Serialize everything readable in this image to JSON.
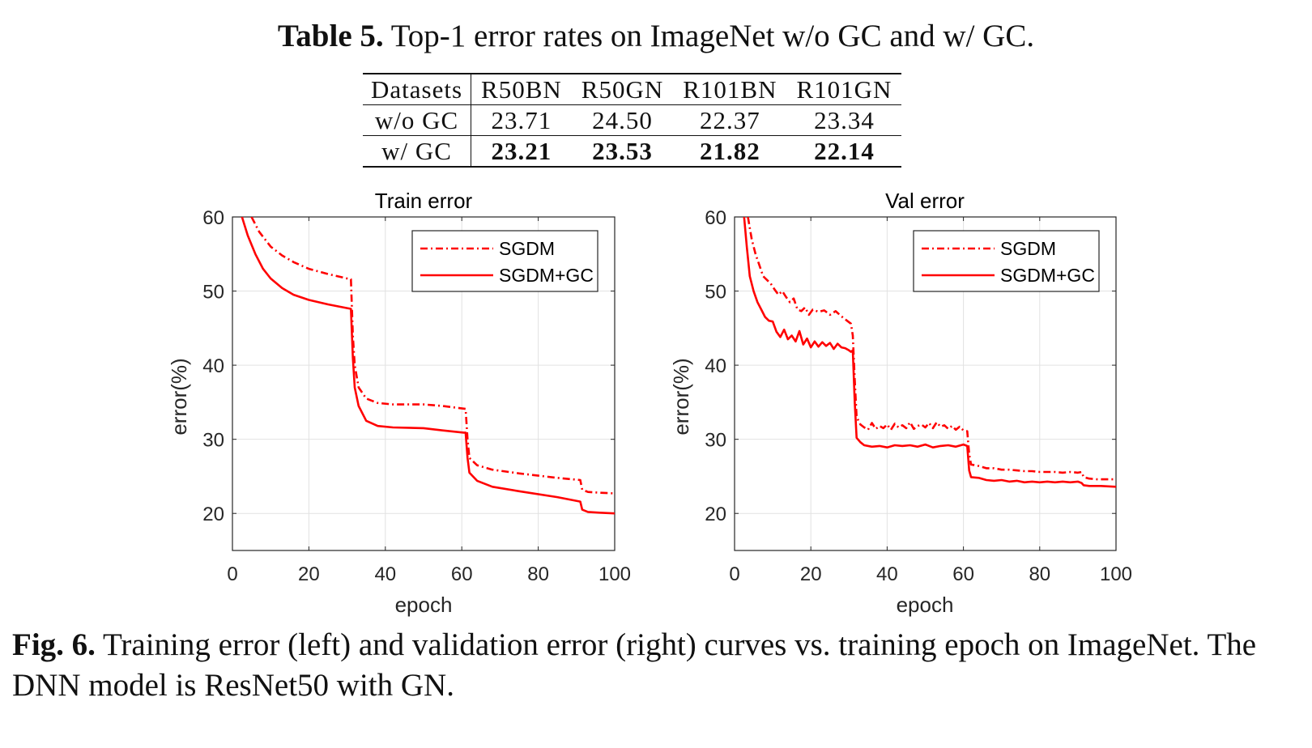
{
  "table": {
    "caption_label": "Table 5.",
    "caption_text": "Top-1 error rates on ImageNet w/o GC and w/ GC.",
    "header": [
      "Datasets",
      "R50BN",
      "R50GN",
      "R101BN",
      "R101GN"
    ],
    "rows": [
      {
        "label": "w/o GC",
        "values": [
          "23.71",
          "24.50",
          "22.37",
          "23.34"
        ]
      },
      {
        "label": "w/ GC",
        "values": [
          "23.21",
          "23.53",
          "21.82",
          "22.14"
        ]
      }
    ]
  },
  "figure": {
    "caption_label": "Fig. 6.",
    "caption_text": "Training error (left) and validation error (right) curves vs. training epoch on ImageNet. The DNN model is ResNet50 with GN."
  },
  "chart_data": [
    {
      "type": "line",
      "title": "Train error",
      "xlabel": "epoch",
      "ylabel": "error(%)",
      "xlim": [
        0,
        100
      ],
      "ylim": [
        15,
        60
      ],
      "xticks": [
        "0",
        "20",
        "40",
        "60",
        "80",
        "100"
      ],
      "yticks": [
        "20",
        "30",
        "40",
        "50",
        "60"
      ],
      "grid": true,
      "legend_position": "top-right",
      "color": "#ff0000",
      "series": [
        {
          "name": "SGDM",
          "style": "dashdot",
          "x": [
            5,
            7,
            10,
            13,
            16,
            20,
            25,
            30,
            31,
            31.5,
            32,
            33,
            35,
            38,
            42,
            50,
            55,
            61,
            61.5,
            62,
            64,
            68,
            75,
            85,
            91,
            91.5,
            93,
            96,
            100
          ],
          "y": [
            60,
            58,
            56,
            54.8,
            53.9,
            53,
            52.3,
            51.7,
            51.6,
            44,
            40,
            37,
            35.5,
            34.9,
            34.7,
            34.7,
            34.5,
            34.1,
            30,
            27.5,
            26.5,
            25.9,
            25.4,
            24.8,
            24.5,
            23.2,
            22.9,
            22.8,
            22.7
          ]
        },
        {
          "name": "SGDM+GC",
          "style": "solid",
          "x": [
            2.5,
            4,
            6,
            8,
            10,
            13,
            16,
            20,
            25,
            30,
            31,
            31.5,
            32,
            33,
            35,
            38,
            42,
            50,
            55,
            60.5,
            61,
            61.5,
            62,
            64,
            68,
            75,
            85,
            91,
            91.5,
            93,
            96,
            100
          ],
          "y": [
            60,
            57.5,
            55,
            53,
            51.7,
            50.4,
            49.5,
            48.8,
            48.2,
            47.7,
            47.6,
            41,
            37,
            34.5,
            32.5,
            31.8,
            31.6,
            31.5,
            31.2,
            30.9,
            30.9,
            27.5,
            25.5,
            24.4,
            23.6,
            23,
            22.2,
            21.6,
            20.5,
            20.2,
            20.1,
            20
          ]
        }
      ]
    },
    {
      "type": "line",
      "title": "Val error",
      "xlabel": "epoch",
      "ylabel": "error(%)",
      "xlim": [
        0,
        100
      ],
      "ylim": [
        15,
        60
      ],
      "xticks": [
        "0",
        "20",
        "40",
        "60",
        "80",
        "100"
      ],
      "yticks": [
        "20",
        "30",
        "40",
        "50",
        "60"
      ],
      "grid": true,
      "legend_position": "top-right",
      "color": "#ff0000",
      "series": [
        {
          "name": "SGDM",
          "style": "dashdot",
          "x": [
            3.5,
            4.5,
            5.5,
            6.5,
            7.5,
            8.5,
            9.5,
            10.5,
            11.5,
            12.5,
            13.5,
            14.5,
            15.5,
            16.5,
            17.5,
            18.5,
            19.5,
            20.5,
            22,
            23.5,
            25,
            26.5,
            28,
            29.5,
            30.5,
            31,
            31.5,
            32,
            33,
            34,
            35,
            36,
            37,
            38,
            39,
            40,
            41,
            42,
            43,
            44,
            45,
            46,
            47,
            48,
            49,
            50,
            51,
            52,
            53,
            54,
            55,
            56,
            57,
            58,
            59,
            60,
            61,
            61.5,
            62,
            64,
            66,
            68,
            70,
            72,
            74,
            76,
            78,
            80,
            82,
            84,
            86,
            88,
            90,
            91,
            91.5,
            93,
            95,
            97,
            100
          ],
          "y": [
            60,
            57,
            55,
            53.5,
            52,
            51.5,
            51,
            50.2,
            49.5,
            50,
            49.2,
            48.5,
            49,
            47.5,
            47.3,
            47.8,
            46.8,
            47.5,
            47.2,
            47.4,
            46.8,
            47.3,
            46.6,
            46,
            45.6,
            44,
            38,
            33,
            32,
            31.6,
            31.3,
            32.2,
            31.4,
            31.8,
            31.5,
            32,
            31.3,
            32.1,
            31.6,
            31.9,
            31.5,
            32.3,
            31.4,
            31.8,
            32,
            31.6,
            32.2,
            31.5,
            32.3,
            31.7,
            31.9,
            31.4,
            31.8,
            31.3,
            31.7,
            31.2,
            31.1,
            28,
            26.6,
            26.4,
            26.1,
            26.1,
            25.9,
            25.9,
            25.8,
            25.7,
            25.7,
            25.6,
            25.6,
            25.6,
            25.5,
            25.6,
            25.5,
            25.6,
            24.9,
            24.7,
            24.6,
            24.6,
            24.6
          ]
        },
        {
          "name": "SGDM+GC",
          "style": "solid",
          "x": [
            2.5,
            3.2,
            4,
            5,
            6,
            7,
            8,
            9,
            10,
            11,
            12,
            13,
            14,
            15,
            16,
            17,
            18,
            19,
            20,
            21,
            22,
            23,
            24,
            25,
            26,
            27,
            28,
            29,
            30,
            30.5,
            31,
            31.5,
            32,
            33,
            34,
            36,
            38,
            40,
            42,
            44,
            46,
            48,
            50,
            52,
            54,
            56,
            58,
            60,
            60.5,
            61,
            61.5,
            62,
            64,
            66,
            68,
            70,
            72,
            74,
            76,
            78,
            80,
            82,
            84,
            86,
            88,
            90,
            91,
            91.5,
            93,
            96,
            100
          ],
          "y": [
            60,
            56,
            52,
            50,
            48.5,
            47.5,
            46.5,
            46,
            45.9,
            44.5,
            43.8,
            44.8,
            43.5,
            44,
            43.2,
            44.6,
            42.8,
            43.6,
            42.4,
            43.2,
            42.5,
            43.1,
            42.6,
            43,
            42.2,
            42.9,
            42.4,
            42.3,
            42,
            41.8,
            42,
            35,
            30.2,
            29.6,
            29.2,
            29,
            29.1,
            28.9,
            29.2,
            29.1,
            29.2,
            29,
            29.3,
            28.9,
            29.1,
            29.2,
            29,
            29.3,
            29.2,
            29.1,
            25.8,
            24.9,
            24.8,
            24.5,
            24.4,
            24.5,
            24.3,
            24.4,
            24.2,
            24.3,
            24.2,
            24.3,
            24.2,
            24.3,
            24.2,
            24.3,
            24.1,
            23.8,
            23.7,
            23.7,
            23.6
          ]
        }
      ]
    }
  ]
}
